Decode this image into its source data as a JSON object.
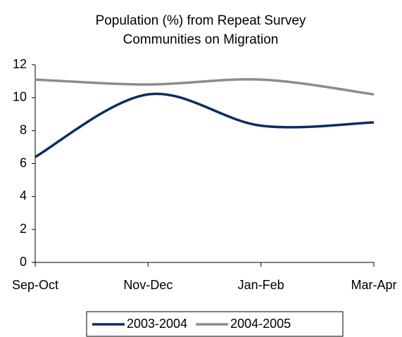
{
  "chart_data": {
    "type": "line",
    "title": "Population (%) from Repeat Survey Communities on Migration",
    "categories": [
      "Sep-Oct",
      "Nov-Dec",
      "Jan-Feb",
      "Mar-Apr"
    ],
    "series": [
      {
        "name": "2003-2004",
        "color": "#0b2d5e",
        "values": [
          6.4,
          10.2,
          8.3,
          8.5
        ]
      },
      {
        "name": "2004-2005",
        "color": "#8c8c8c",
        "values": [
          11.1,
          10.8,
          11.1,
          10.2
        ]
      }
    ],
    "ylim": [
      0,
      12
    ],
    "yticks": [
      0,
      2,
      4,
      6,
      8,
      10,
      12
    ],
    "grid": false,
    "legend": "bottom"
  }
}
